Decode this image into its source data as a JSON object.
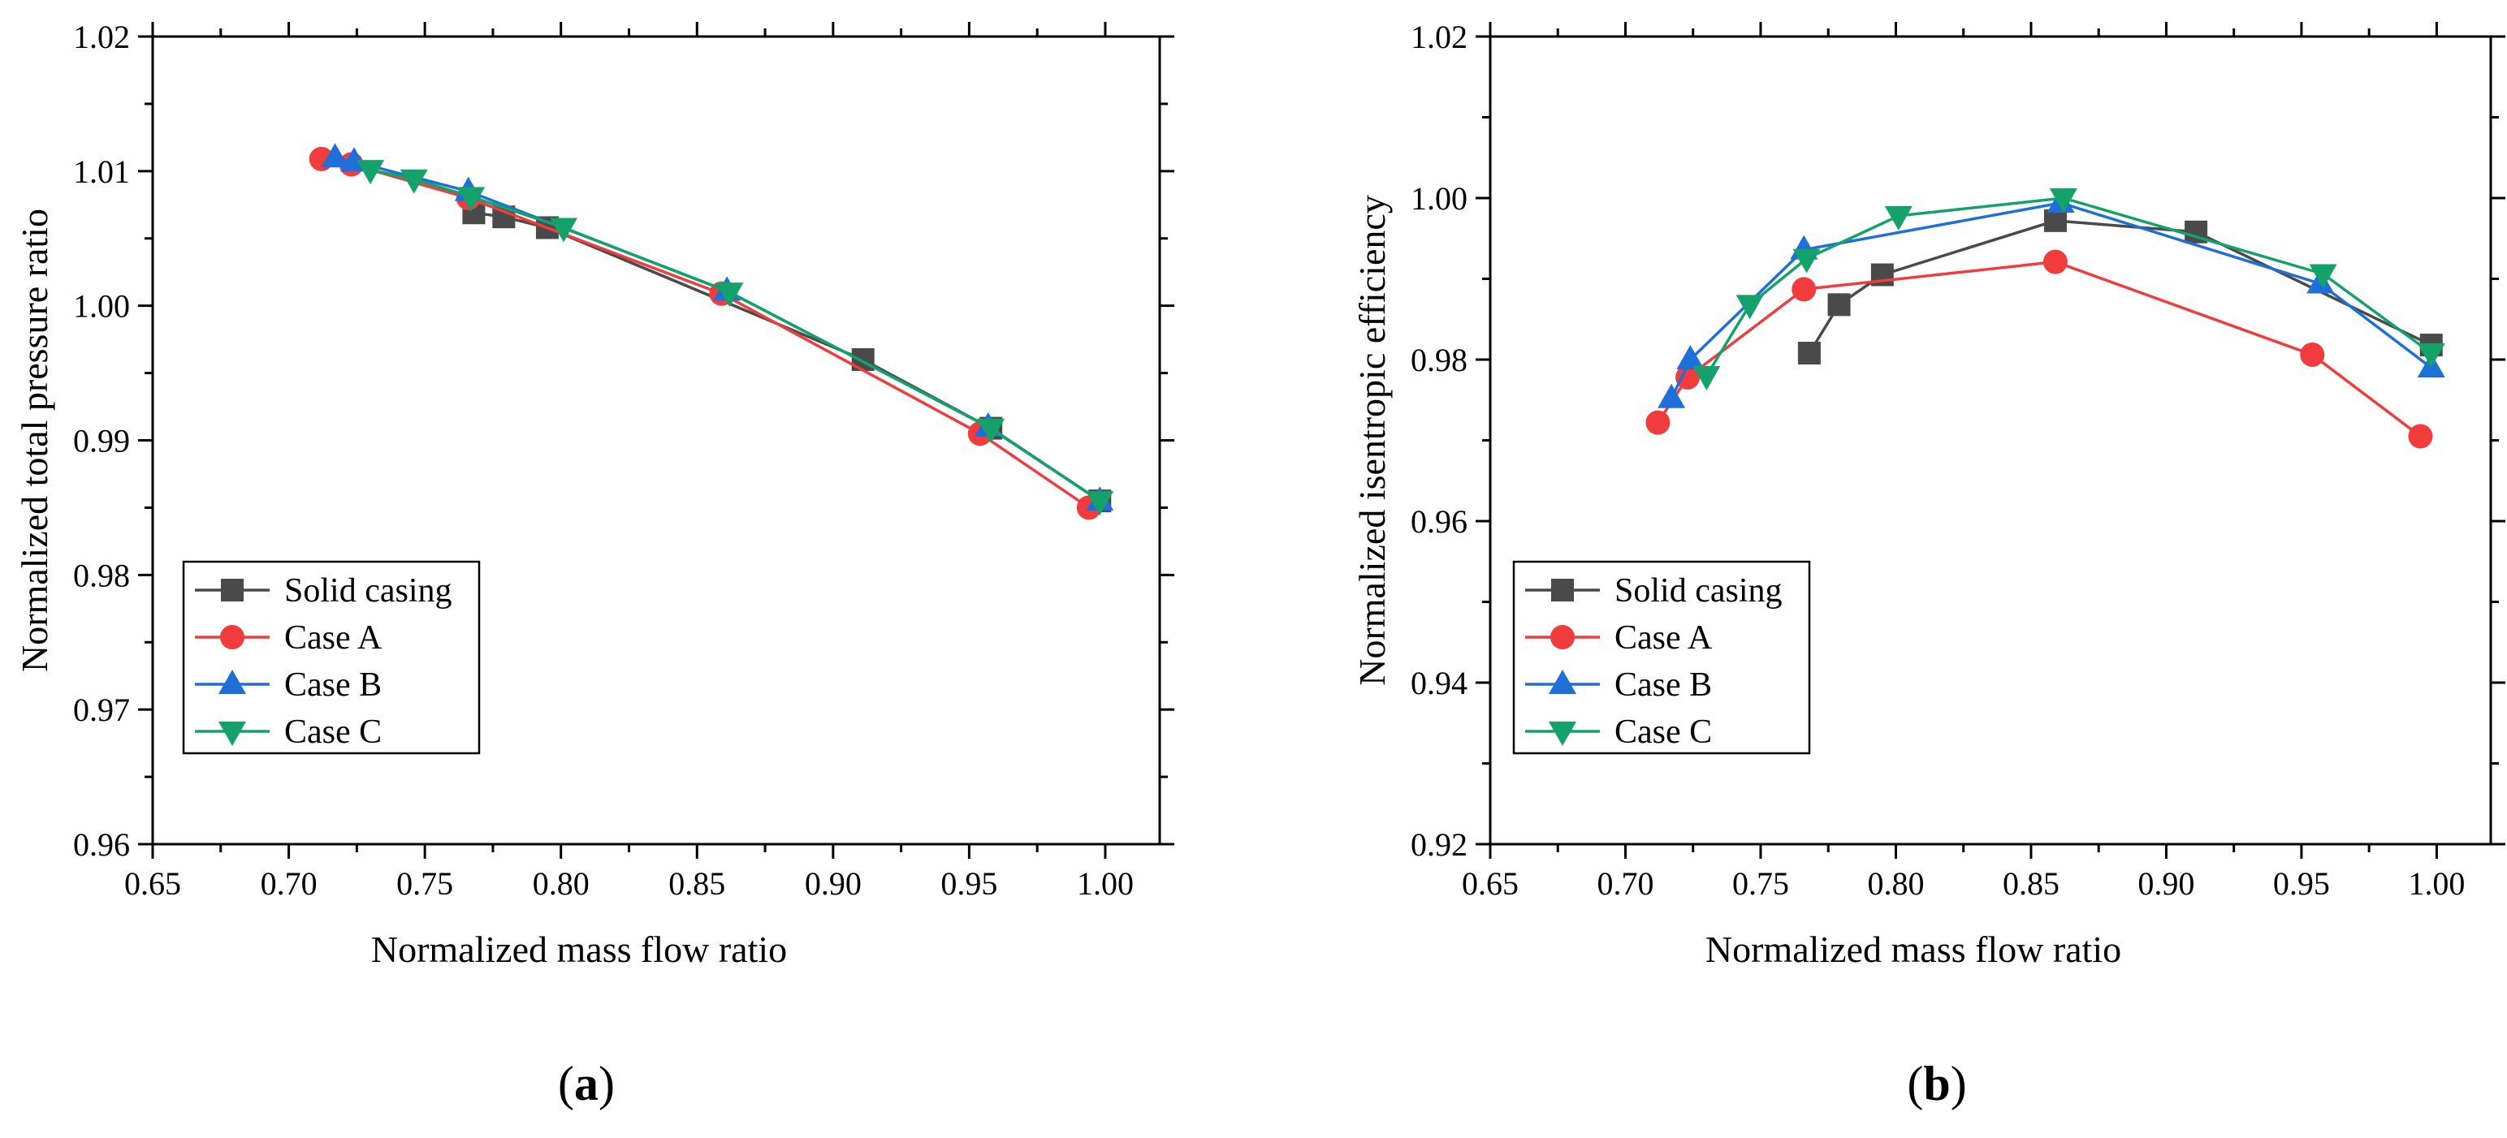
{
  "panel_labels": {
    "a": {
      "open": "(",
      "letter": "a",
      "close": ")"
    },
    "b": {
      "open": "(",
      "letter": "b",
      "close": ")"
    }
  },
  "series_styles": [
    {
      "name": "Solid casing",
      "color": "#4a4a4a",
      "marker": "square"
    },
    {
      "name": "Case A",
      "color": "#f03c3c",
      "marker": "circle"
    },
    {
      "name": "Case B",
      "color": "#1f6fd8",
      "marker": "triangle-up"
    },
    {
      "name": "Case C",
      "color": "#14a26a",
      "marker": "triangle-down"
    }
  ],
  "chart_data": [
    {
      "type": "line",
      "panel": "a",
      "title": "",
      "xlabel": "Normalized mass flow ratio",
      "ylabel": "Normalized total pressure ratio",
      "xlim": [
        0.65,
        1.02
      ],
      "ylim": [
        0.96,
        1.02
      ],
      "xticks": [
        0.65,
        0.7,
        0.75,
        0.8,
        0.85,
        0.9,
        0.95,
        1.0
      ],
      "xtick_labels": [
        "0.65",
        "0.70",
        "0.75",
        "0.80",
        "0.85",
        "0.90",
        "0.95",
        "1.00"
      ],
      "yticks": [
        0.96,
        0.97,
        0.98,
        0.99,
        1.0,
        1.01,
        1.02
      ],
      "ytick_labels": [
        "0.96",
        "0.97",
        "0.98",
        "0.99",
        "1.00",
        "1.01",
        "1.02"
      ],
      "legend_position": "lower-left",
      "series": [
        {
          "name": "Solid casing",
          "x": [
            0.768,
            0.779,
            0.795,
            0.911,
            0.958,
            0.998
          ],
          "y": [
            1.0069,
            1.0066,
            1.0058,
            0.996,
            0.9909,
            0.9855
          ]
        },
        {
          "name": "Case A",
          "x": [
            0.712,
            0.723,
            0.766,
            0.859,
            0.954,
            0.994
          ],
          "y": [
            1.0109,
            1.0105,
            1.008,
            1.0009,
            0.9905,
            0.985
          ]
        },
        {
          "name": "Case B",
          "x": [
            0.717,
            0.724,
            0.766,
            0.861,
            0.957,
            0.998
          ],
          "y": [
            1.011,
            1.0107,
            1.0085,
            1.0011,
            0.991,
            0.9855
          ]
        },
        {
          "name": "Case C",
          "x": [
            0.73,
            0.746,
            0.767,
            0.801,
            0.862,
            0.958,
            0.998
          ],
          "y": [
            1.0101,
            1.0094,
            1.0081,
            1.0058,
            1.001,
            0.9909,
            0.9855
          ]
        }
      ]
    },
    {
      "type": "line",
      "panel": "b",
      "title": "",
      "xlabel": "Normalized mass flow ratio",
      "ylabel": "Normalized isentropic efficiency",
      "xlim": [
        0.65,
        1.02
      ],
      "ylim": [
        0.92,
        1.02
      ],
      "xticks": [
        0.65,
        0.7,
        0.75,
        0.8,
        0.85,
        0.9,
        0.95,
        1.0
      ],
      "xtick_labels": [
        "0.65",
        "0.70",
        "0.75",
        "0.80",
        "0.85",
        "0.90",
        "0.95",
        "1.00"
      ],
      "yticks": [
        0.92,
        0.94,
        0.96,
        0.98,
        1.0,
        1.02
      ],
      "ytick_labels": [
        "0.92",
        "0.94",
        "0.96",
        "0.98",
        "1.00",
        "1.02"
      ],
      "legend_position": "lower-left",
      "series": [
        {
          "name": "Solid casing",
          "x": [
            0.768,
            0.779,
            0.795,
            0.859,
            0.911,
            0.998
          ],
          "y": [
            0.9808,
            0.9868,
            0.9905,
            0.9972,
            0.9958,
            0.9818
          ]
        },
        {
          "name": "Case A",
          "x": [
            0.712,
            0.723,
            0.766,
            0.859,
            0.954,
            0.994
          ],
          "y": [
            0.9722,
            0.9778,
            0.9887,
            0.9921,
            0.9806,
            0.9705
          ]
        },
        {
          "name": "Case B",
          "x": [
            0.717,
            0.724,
            0.766,
            0.861,
            0.957,
            0.998
          ],
          "y": [
            0.9752,
            0.98,
            0.9936,
            0.9994,
            0.9894,
            0.979
          ]
        },
        {
          "name": "Case C",
          "x": [
            0.73,
            0.746,
            0.767,
            0.801,
            0.862,
            0.958,
            0.998
          ],
          "y": [
            0.978,
            0.9868,
            0.9925,
            0.9978,
            1.0,
            0.9906,
            0.9808
          ]
        }
      ]
    }
  ]
}
